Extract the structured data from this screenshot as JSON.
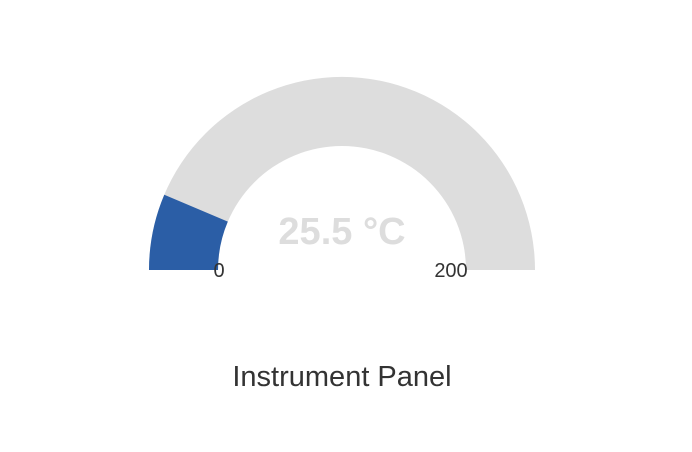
{
  "chart_data": {
    "type": "gauge",
    "title": "Instrument Panel",
    "value": 25.5,
    "value_label": "25.5 °C",
    "unit": "°C",
    "min": 0,
    "max": 200,
    "min_label": "0",
    "max_label": "200",
    "colors": {
      "fill": "#2b5ea6",
      "track": "#dddddd",
      "value_text": "#dddddd",
      "text": "#333333"
    }
  }
}
